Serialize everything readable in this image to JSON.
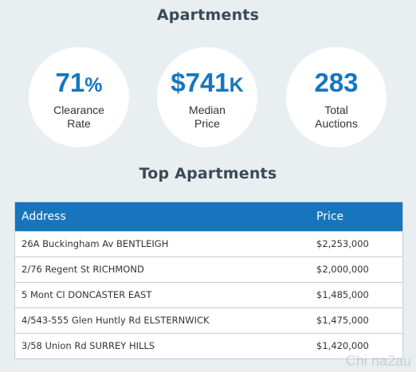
{
  "header": {
    "title": "Apartments"
  },
  "stats": [
    {
      "value": "71",
      "suffix": "%",
      "label_line1": "Clearance",
      "label_line2": "Rate"
    },
    {
      "value": "$741",
      "suffix": "K",
      "label_line1": "Median",
      "label_line2": "Price"
    },
    {
      "value": "283",
      "suffix": "",
      "label_line1": "Total",
      "label_line2": "Auctions"
    }
  ],
  "top_section": {
    "title": "Top Apartments"
  },
  "table": {
    "headers": {
      "address": "Address",
      "price": "Price"
    },
    "rows": [
      {
        "address": "26A Buckingham Av BENTLEIGH",
        "price": "$2,253,000"
      },
      {
        "address": "2/76 Regent St RICHMOND",
        "price": "$2,000,000"
      },
      {
        "address": "5 Mont Cl DONCASTER EAST",
        "price": "$1,485,000"
      },
      {
        "address": "4/543-555 Glen Huntly Rd ELSTERNWICK",
        "price": "$1,475,000"
      },
      {
        "address": "3/58 Union Rd SURREY HILLS",
        "price": "$1,420,000"
      }
    ]
  },
  "watermark": {
    "text": "Chi na2au"
  },
  "colors": {
    "accent": "#1676bf",
    "background": "#e9eef1",
    "header_row": "#1675bc"
  }
}
